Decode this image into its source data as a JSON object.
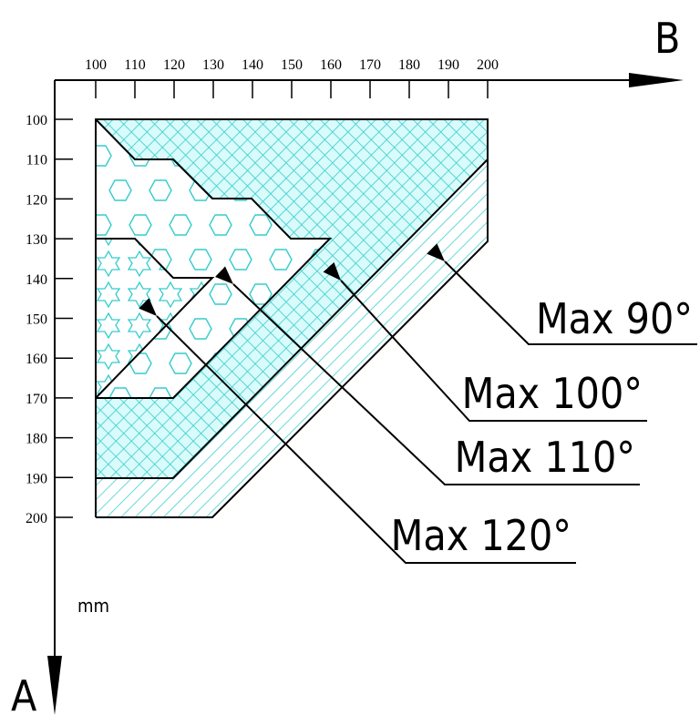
{
  "axes": {
    "x_label": "B",
    "y_label": "A",
    "unit": "mm",
    "x_ticks": [
      100,
      110,
      120,
      130,
      140,
      150,
      160,
      170,
      180,
      190,
      200
    ],
    "y_ticks": [
      100,
      110,
      120,
      130,
      140,
      150,
      160,
      170,
      180,
      190,
      200
    ]
  },
  "regions": [
    {
      "label": "Max 90°"
    },
    {
      "label": "Max 100°"
    },
    {
      "label": "Max 110°"
    },
    {
      "label": "Max 120°"
    }
  ]
}
